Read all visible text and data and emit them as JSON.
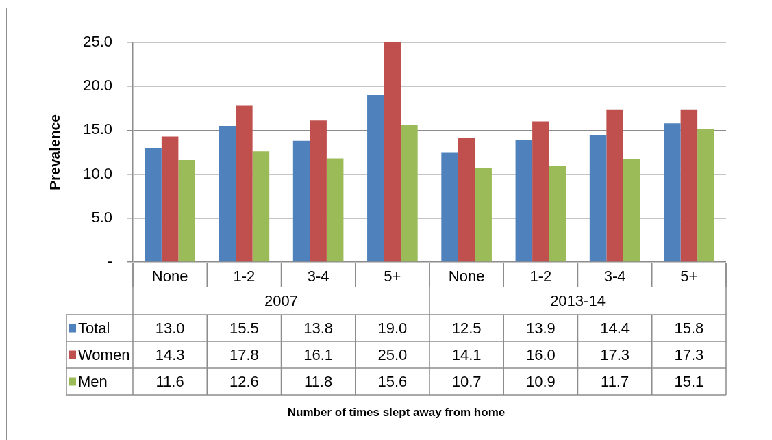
{
  "chart_data": {
    "type": "bar",
    "ylabel": "Prevalence",
    "categories": [
      "None",
      "1-2",
      "3-4",
      "5+",
      "None",
      "1-2",
      "3-4",
      "5+"
    ],
    "series": [
      {
        "name": "Total",
        "color": "#4f81bd",
        "values": [
          13.0,
          15.5,
          13.8,
          19.0,
          12.5,
          13.9,
          14.4,
          15.8
        ],
        "value_labels": [
          "13.0",
          "15.5",
          "13.8",
          "19.0",
          "12.5",
          "13.9",
          "14.4",
          "15.8"
        ]
      },
      {
        "name": "Women",
        "color": "#c0504d",
        "values": [
          14.3,
          17.8,
          16.1,
          25.0,
          14.1,
          16.0,
          17.3,
          17.3
        ],
        "value_labels": [
          "14.3",
          "17.8",
          "16.1",
          "25.0",
          "14.1",
          "16.0",
          "17.3",
          "17.3"
        ]
      },
      {
        "name": "Men",
        "color": "#9bbb59",
        "values": [
          11.6,
          12.6,
          11.8,
          15.6,
          10.7,
          10.9,
          11.7,
          15.1
        ],
        "value_labels": [
          "11.6",
          "12.6",
          "11.8",
          "15.6",
          "10.7",
          "10.9",
          "11.7",
          "15.1"
        ]
      }
    ],
    "annotations": [
      "2007",
      "2013-14",
      "Number of times slept away from home"
    ],
    "ylim": [
      0,
      25
    ],
    "yticks": [
      {
        "value": 0,
        "label": "-"
      },
      {
        "value": 5,
        "label": "5.0"
      },
      {
        "value": 10,
        "label": "10.0"
      },
      {
        "value": 15,
        "label": "15.0"
      },
      {
        "value": 20,
        "label": "20.0"
      },
      {
        "value": 25,
        "label": "25.0"
      }
    ],
    "grid": "y",
    "legend": "bottom left"
  }
}
